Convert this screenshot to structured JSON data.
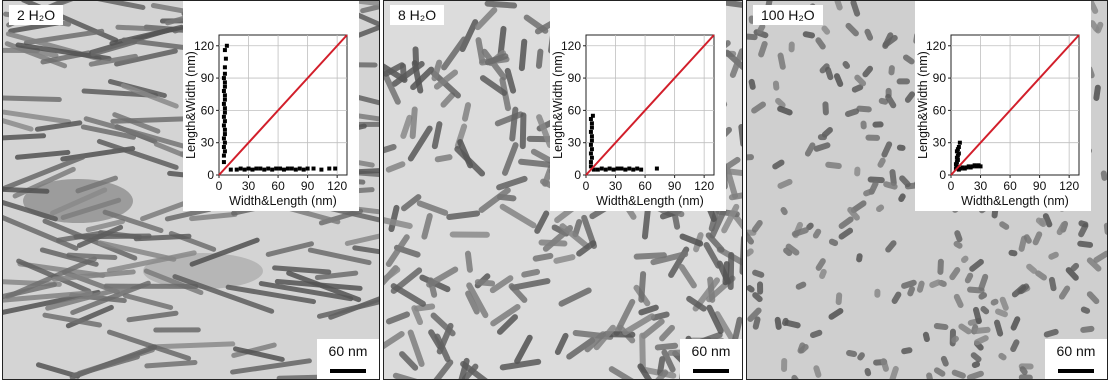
{
  "panels": [
    {
      "label": "2 H₂O",
      "scale": "60 nm"
    },
    {
      "label": "8 H₂O",
      "scale": "60 nm"
    },
    {
      "label": "100 H₂O",
      "scale": "60 nm"
    }
  ],
  "chart_data": [
    {
      "type": "scatter",
      "title": "",
      "xlabel": "Width&Length (nm)",
      "ylabel": "Length&Width (nm)",
      "xlim": [
        0,
        130
      ],
      "ylim": [
        0,
        130
      ],
      "xticks": [
        0,
        30,
        60,
        90,
        120
      ],
      "yticks": [
        0,
        30,
        60,
        90,
        120
      ],
      "grid": true,
      "reference_line": {
        "from": [
          0,
          0
        ],
        "to": [
          130,
          130
        ],
        "color": "#d21f2b"
      },
      "series": [
        {
          "values": [
            [
              5,
              12
            ],
            [
              5,
              18
            ],
            [
              6,
              22
            ],
            [
              5,
              26
            ],
            [
              6,
              30
            ],
            [
              5,
              34
            ],
            [
              6,
              38
            ],
            [
              6,
              42
            ],
            [
              5,
              46
            ],
            [
              6,
              50
            ],
            [
              5,
              54
            ],
            [
              6,
              58
            ],
            [
              6,
              62
            ],
            [
              5,
              66
            ],
            [
              6,
              70
            ],
            [
              6,
              74
            ],
            [
              5,
              78
            ],
            [
              6,
              82
            ],
            [
              6,
              86
            ],
            [
              5,
              90
            ],
            [
              6,
              94
            ],
            [
              6,
              100
            ],
            [
              7,
              108
            ],
            [
              6,
              116
            ],
            [
              8,
              120
            ]
          ],
          "color": "#000000"
        },
        {
          "values": [
            [
              12,
              5
            ],
            [
              18,
              5
            ],
            [
              22,
              6
            ],
            [
              26,
              5
            ],
            [
              30,
              6
            ],
            [
              34,
              5
            ],
            [
              38,
              6
            ],
            [
              42,
              6
            ],
            [
              46,
              5
            ],
            [
              50,
              6
            ],
            [
              54,
              5
            ],
            [
              58,
              6
            ],
            [
              62,
              6
            ],
            [
              66,
              5
            ],
            [
              70,
              6
            ],
            [
              74,
              6
            ],
            [
              78,
              5
            ],
            [
              82,
              6
            ],
            [
              86,
              5
            ],
            [
              90,
              6
            ],
            [
              96,
              6
            ],
            [
              104,
              5
            ],
            [
              112,
              6
            ],
            [
              118,
              6
            ]
          ],
          "color": "#000000"
        }
      ]
    },
    {
      "type": "scatter",
      "title": "",
      "xlabel": "Width&Length (nm)",
      "ylabel": "Length&Width (nm)",
      "xlim": [
        0,
        130
      ],
      "ylim": [
        0,
        130
      ],
      "xticks": [
        0,
        30,
        60,
        90,
        120
      ],
      "yticks": [
        0,
        30,
        60,
        90,
        120
      ],
      "grid": true,
      "reference_line": {
        "from": [
          0,
          0
        ],
        "to": [
          130,
          130
        ],
        "color": "#d21f2b"
      },
      "series": [
        {
          "values": [
            [
              5,
              8
            ],
            [
              5,
              12
            ],
            [
              6,
              16
            ],
            [
              5,
              20
            ],
            [
              6,
              24
            ],
            [
              5,
              28
            ],
            [
              6,
              32
            ],
            [
              6,
              36
            ],
            [
              5,
              40
            ],
            [
              6,
              44
            ],
            [
              6,
              48
            ],
            [
              5,
              52
            ],
            [
              7,
              55
            ]
          ],
          "color": "#000000"
        },
        {
          "values": [
            [
              8,
              5
            ],
            [
              12,
              5
            ],
            [
              16,
              6
            ],
            [
              20,
              5
            ],
            [
              24,
              6
            ],
            [
              28,
              5
            ],
            [
              32,
              6
            ],
            [
              36,
              6
            ],
            [
              40,
              5
            ],
            [
              44,
              6
            ],
            [
              48,
              5
            ],
            [
              52,
              6
            ],
            [
              56,
              5
            ],
            [
              72,
              6
            ]
          ],
          "color": "#000000"
        }
      ]
    },
    {
      "type": "scatter",
      "title": "",
      "xlabel": "Width&Length (nm)",
      "ylabel": "Length&Width (nm)",
      "xlim": [
        0,
        130
      ],
      "ylim": [
        0,
        130
      ],
      "xticks": [
        0,
        30,
        60,
        90,
        120
      ],
      "yticks": [
        0,
        30,
        60,
        90,
        120
      ],
      "grid": true,
      "reference_line": {
        "from": [
          0,
          0
        ],
        "to": [
          130,
          130
        ],
        "color": "#d21f2b"
      },
      "series": [
        {
          "values": [
            [
              5,
              6
            ],
            [
              6,
              8
            ],
            [
              5,
              10
            ],
            [
              6,
              12
            ],
            [
              7,
              14
            ],
            [
              6,
              16
            ],
            [
              7,
              18
            ],
            [
              8,
              20
            ],
            [
              6,
              22
            ],
            [
              7,
              24
            ],
            [
              8,
              26
            ],
            [
              9,
              30
            ]
          ],
          "color": "#000000"
        },
        {
          "values": [
            [
              8,
              5
            ],
            [
              10,
              6
            ],
            [
              12,
              7
            ],
            [
              14,
              6
            ],
            [
              16,
              7
            ],
            [
              18,
              8
            ],
            [
              20,
              7
            ],
            [
              22,
              8
            ],
            [
              24,
              9
            ],
            [
              26,
              8
            ],
            [
              28,
              9
            ],
            [
              30,
              8
            ]
          ],
          "color": "#000000"
        }
      ]
    }
  ]
}
